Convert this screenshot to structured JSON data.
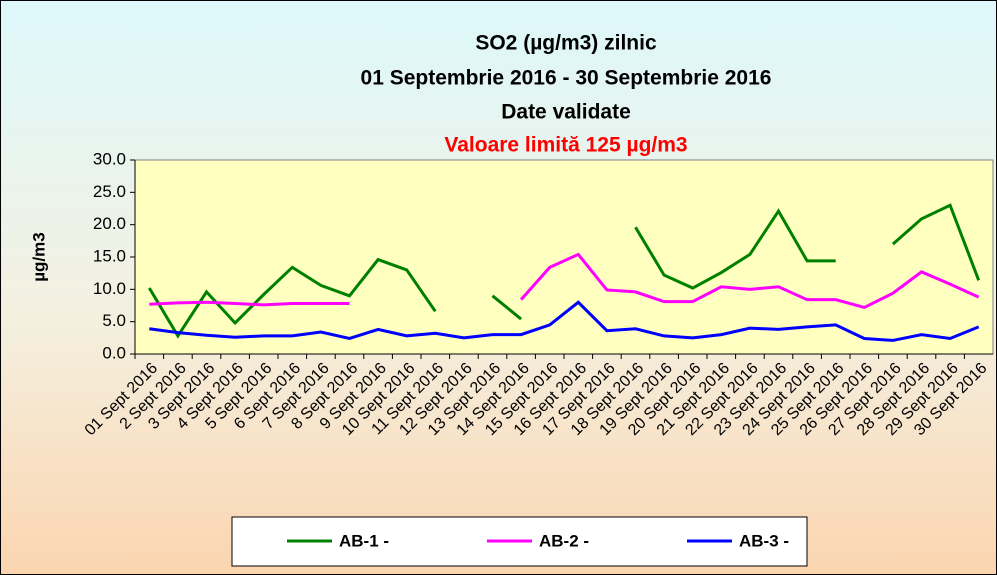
{
  "chart_data": {
    "type": "line",
    "title": [
      "SO2 (µg/m3) zilnic",
      "01 Septembrie 2016 - 30 Septembrie 2016",
      "Date validate"
    ],
    "subtitle": "Valoare limită 125 µg/m3",
    "y_label": "µg/m3",
    "categories": [
      "01 Sept 2016",
      "2 Sept 2016",
      "3 Sept 2016",
      "4 Sept 2016",
      "5 Sept 2016",
      "6 Sept 2016",
      "7 Sept 2016",
      "8 Sept 2016",
      "9 Sept 2016",
      "10 Sept 2016",
      "11 Sept 2016",
      "12 Sept 2016",
      "13 Sept 2016",
      "14 Sept 2016",
      "15 Sept 2016",
      "16 Sept 2016",
      "17 Sept 2016",
      "18 Sept 2016",
      "19 Sept 2016",
      "20 Sept 2016",
      "21 Sept 2016",
      "22 Sept 2016",
      "23 Sept 2016",
      "24 Sept 2016",
      "25 Sept 2016",
      "26 Sept 2016",
      "27 Sept 2016",
      "28 Sept 2016",
      "29 Sept 2016",
      "30 Sept 2016"
    ],
    "series": [
      {
        "name": "AB-1 -",
        "color": "#008000",
        "values": [
          10.2,
          2.8,
          9.6,
          4.8,
          9.2,
          13.4,
          10.6,
          9.0,
          14.6,
          13.0,
          6.6,
          null,
          9.0,
          5.4,
          null,
          null,
          null,
          19.6,
          12.2,
          10.2,
          12.6,
          15.4,
          22.1,
          14.4,
          14.4,
          null,
          17.0,
          20.9,
          23.0,
          11.4
        ]
      },
      {
        "name": "AB-2 -",
        "color": "#ff00ff",
        "values": [
          7.7,
          7.9,
          8.0,
          7.8,
          7.6,
          7.8,
          7.8,
          7.8,
          null,
          null,
          null,
          null,
          null,
          8.4,
          13.4,
          15.4,
          9.9,
          9.6,
          8.1,
          8.1,
          10.4,
          10.0,
          10.4,
          8.4,
          8.4,
          7.2,
          9.4,
          12.7,
          10.8,
          8.8
        ]
      },
      {
        "name": "AB-3 -",
        "color": "#0000ff",
        "values": [
          3.9,
          3.3,
          2.9,
          2.6,
          2.8,
          2.8,
          3.4,
          2.4,
          3.8,
          2.8,
          3.2,
          2.5,
          3.0,
          3.0,
          4.5,
          8.0,
          3.6,
          3.9,
          2.8,
          2.5,
          3.0,
          4.0,
          3.8,
          4.2,
          4.5,
          2.4,
          2.1,
          3.0,
          2.4,
          4.2
        ]
      }
    ],
    "ylim": [
      0,
      30
    ],
    "yticks": [
      {
        "value": 0,
        "label": "0.0"
      },
      {
        "value": 5,
        "label": "5.0"
      },
      {
        "value": 10,
        "label": "10.0"
      },
      {
        "value": 15,
        "label": "15.0"
      },
      {
        "value": 20,
        "label": "20.0"
      },
      {
        "value": 25,
        "label": "25.0"
      },
      {
        "value": 30,
        "label": "30.0"
      }
    ],
    "plot_color": "#ffffc0"
  }
}
